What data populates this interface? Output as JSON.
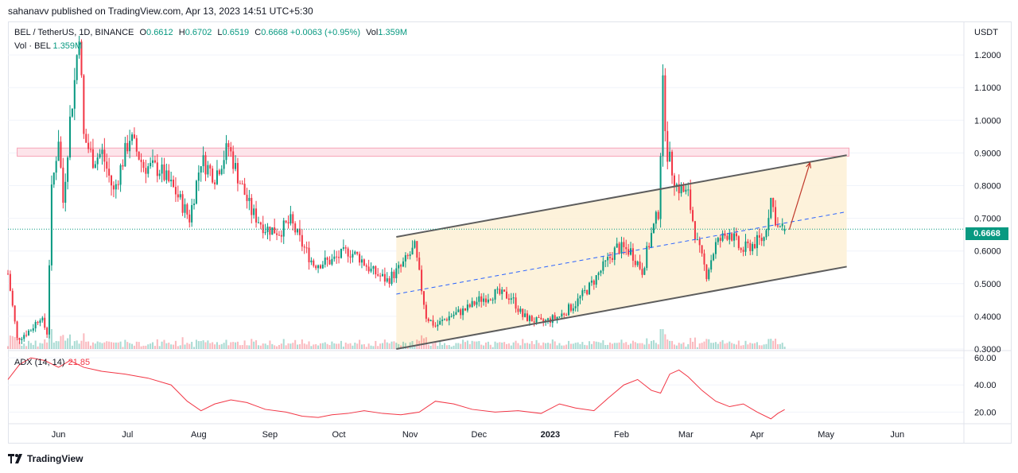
{
  "header": {
    "publisher": "sahanavv published on TradingView.com, Apr 13, 2023 14:51 UTC+5:30"
  },
  "legend": {
    "symbol": "BEL / TetherUS, 1D, BINANCE",
    "open_label": "O",
    "open": "0.6612",
    "high_label": "H",
    "high": "0.6702",
    "low_label": "L",
    "low": "0.6519",
    "close_label": "C",
    "close": "0.6668",
    "change": "+0.0063 (+0.95%)",
    "vol_label": "Vol",
    "vol": "1.359M",
    "vol_row_label": "Vol · BEL",
    "vol_row_value": "1.359M"
  },
  "adx": {
    "label": "ADX (14, 14)",
    "value": "21.85"
  },
  "footer": {
    "brand": "TradingView"
  },
  "colors": {
    "up": "#089981",
    "down": "#f23645",
    "adx": "#f23645",
    "channel_fill": "#fdf1d7",
    "resistance_fill": "#fde4ea",
    "dashed": "#2962ff"
  },
  "chart_data": [
    {
      "type": "candlestick",
      "symbol": "BEL/USDT",
      "currency_label": "USDT",
      "last_price": "0.6668",
      "y_ticks": [
        "1.2000",
        "1.1000",
        "1.0000",
        "0.9000",
        "0.8000",
        "0.7000",
        "0.6000",
        "0.5000",
        "0.4000",
        "0.3000"
      ],
      "y_tick_values": [
        1.2,
        1.1,
        1.0,
        0.9,
        0.8,
        0.7,
        0.6,
        0.5,
        0.4,
        0.3
      ],
      "ylim": [
        0.3,
        1.3
      ],
      "x_ticks": [
        "Jun",
        "Jul",
        "Aug",
        "Sep",
        "Oct",
        "Nov",
        "Dec",
        "2023",
        "Feb",
        "Mar",
        "Apr",
        "May",
        "Jun"
      ],
      "close_path": [
        [
          "2022-05-10",
          0.53
        ],
        [
          "2022-05-14",
          0.33
        ],
        [
          "2022-05-20",
          0.36
        ],
        [
          "2022-05-24",
          0.4
        ],
        [
          "2022-05-27",
          0.35
        ],
        [
          "2022-05-29",
          0.78
        ],
        [
          "2022-06-01",
          0.95
        ],
        [
          "2022-06-03",
          0.75
        ],
        [
          "2022-06-06",
          1.0
        ],
        [
          "2022-06-08",
          1.12
        ],
        [
          "2022-06-10",
          1.28
        ],
        [
          "2022-06-12",
          0.95
        ],
        [
          "2022-06-16",
          0.88
        ],
        [
          "2022-06-20",
          0.9
        ],
        [
          "2022-06-25",
          0.78
        ],
        [
          "2022-07-02",
          0.95
        ],
        [
          "2022-07-08",
          0.86
        ],
        [
          "2022-07-15",
          0.85
        ],
        [
          "2022-07-22",
          0.78
        ],
        [
          "2022-07-28",
          0.7
        ],
        [
          "2022-08-02",
          0.88
        ],
        [
          "2022-08-08",
          0.83
        ],
        [
          "2022-08-14",
          0.92
        ],
        [
          "2022-08-18",
          0.83
        ],
        [
          "2022-08-24",
          0.72
        ],
        [
          "2022-08-30",
          0.67
        ],
        [
          "2022-09-05",
          0.66
        ],
        [
          "2022-09-10",
          0.69
        ],
        [
          "2022-09-15",
          0.62
        ],
        [
          "2022-09-20",
          0.56
        ],
        [
          "2022-09-28",
          0.57
        ],
        [
          "2022-10-05",
          0.6
        ],
        [
          "2022-10-10",
          0.58
        ],
        [
          "2022-10-15",
          0.54
        ],
        [
          "2022-10-22",
          0.51
        ],
        [
          "2022-10-28",
          0.55
        ],
        [
          "2022-11-03",
          0.61
        ],
        [
          "2022-11-08",
          0.4
        ],
        [
          "2022-11-12",
          0.37
        ],
        [
          "2022-11-18",
          0.4
        ],
        [
          "2022-11-25",
          0.42
        ],
        [
          "2022-12-01",
          0.45
        ],
        [
          "2022-12-08",
          0.47
        ],
        [
          "2022-12-15",
          0.46
        ],
        [
          "2022-12-20",
          0.4
        ],
        [
          "2022-12-28",
          0.38
        ],
        [
          "2023-01-05",
          0.4
        ],
        [
          "2023-01-12",
          0.44
        ],
        [
          "2023-01-18",
          0.49
        ],
        [
          "2023-01-24",
          0.55
        ],
        [
          "2023-01-30",
          0.61
        ],
        [
          "2023-02-05",
          0.6
        ],
        [
          "2023-02-10",
          0.54
        ],
        [
          "2023-02-14",
          0.65
        ],
        [
          "2023-02-17",
          0.72
        ],
        [
          "2023-02-19",
          1.1
        ],
        [
          "2023-02-21",
          0.9
        ],
        [
          "2023-02-25",
          0.8
        ],
        [
          "2023-03-02",
          0.77
        ],
        [
          "2023-03-06",
          0.62
        ],
        [
          "2023-03-10",
          0.53
        ],
        [
          "2023-03-14",
          0.62
        ],
        [
          "2023-03-20",
          0.66
        ],
        [
          "2023-03-25",
          0.6
        ],
        [
          "2023-03-30",
          0.62
        ],
        [
          "2023-04-04",
          0.64
        ],
        [
          "2023-04-07",
          0.76
        ],
        [
          "2023-04-10",
          0.67
        ],
        [
          "2023-04-13",
          0.6668
        ]
      ],
      "annotations": {
        "resistance_zone": {
          "from_date": "2022-05-14",
          "to_date": "2023-05-11",
          "low": 0.89,
          "high": 0.915
        },
        "ascending_channel": {
          "upper": [
            [
              "2022-10-26",
              0.643
            ],
            [
              "2023-05-10",
              0.893
            ]
          ],
          "lower": [
            [
              "2022-10-26",
              0.3
            ],
            [
              "2023-05-10",
              0.552
            ]
          ],
          "midline": [
            [
              "2022-10-26",
              0.468
            ],
            [
              "2023-05-10",
              0.72
            ]
          ]
        },
        "projection_arrow": [
          [
            "2023-04-15",
            0.665
          ],
          [
            "2023-04-24",
            0.87
          ]
        ]
      }
    },
    {
      "type": "line",
      "name": "ADX (14, 14)",
      "y_ticks": [
        "60.00",
        "40.00",
        "20.00"
      ],
      "y_tick_values": [
        60,
        40,
        20
      ],
      "ylim": [
        12,
        63
      ],
      "points": [
        [
          "2022-05-10",
          44
        ],
        [
          "2022-05-15",
          55
        ],
        [
          "2022-05-20",
          60
        ],
        [
          "2022-05-26",
          58
        ],
        [
          "2022-06-01",
          53
        ],
        [
          "2022-06-06",
          58
        ],
        [
          "2022-06-12",
          53
        ],
        [
          "2022-06-20",
          50
        ],
        [
          "2022-06-30",
          48
        ],
        [
          "2022-07-10",
          45
        ],
        [
          "2022-07-20",
          40
        ],
        [
          "2022-07-27",
          28
        ],
        [
          "2022-08-02",
          21
        ],
        [
          "2022-08-08",
          26
        ],
        [
          "2022-08-15",
          29
        ],
        [
          "2022-08-22",
          27
        ],
        [
          "2022-08-30",
          22
        ],
        [
          "2022-09-08",
          20
        ],
        [
          "2022-09-15",
          17
        ],
        [
          "2022-09-22",
          16
        ],
        [
          "2022-09-28",
          18
        ],
        [
          "2022-10-05",
          19
        ],
        [
          "2022-10-12",
          21
        ],
        [
          "2022-10-20",
          19
        ],
        [
          "2022-10-28",
          18
        ],
        [
          "2022-11-05",
          20
        ],
        [
          "2022-11-12",
          28
        ],
        [
          "2022-11-20",
          26
        ],
        [
          "2022-11-28",
          22
        ],
        [
          "2022-12-08",
          20
        ],
        [
          "2022-12-18",
          21
        ],
        [
          "2022-12-28",
          19
        ],
        [
          "2023-01-05",
          26
        ],
        [
          "2023-01-12",
          23
        ],
        [
          "2023-01-20",
          21
        ],
        [
          "2023-01-26",
          30
        ],
        [
          "2023-02-02",
          40
        ],
        [
          "2023-02-08",
          44
        ],
        [
          "2023-02-14",
          36
        ],
        [
          "2023-02-18",
          34
        ],
        [
          "2023-02-22",
          48
        ],
        [
          "2023-02-26",
          51
        ],
        [
          "2023-03-02",
          46
        ],
        [
          "2023-03-08",
          36
        ],
        [
          "2023-03-14",
          28
        ],
        [
          "2023-03-20",
          24
        ],
        [
          "2023-03-26",
          26
        ],
        [
          "2023-04-01",
          20
        ],
        [
          "2023-04-07",
          15
        ],
        [
          "2023-04-10",
          19
        ],
        [
          "2023-04-13",
          21.85
        ]
      ]
    }
  ]
}
